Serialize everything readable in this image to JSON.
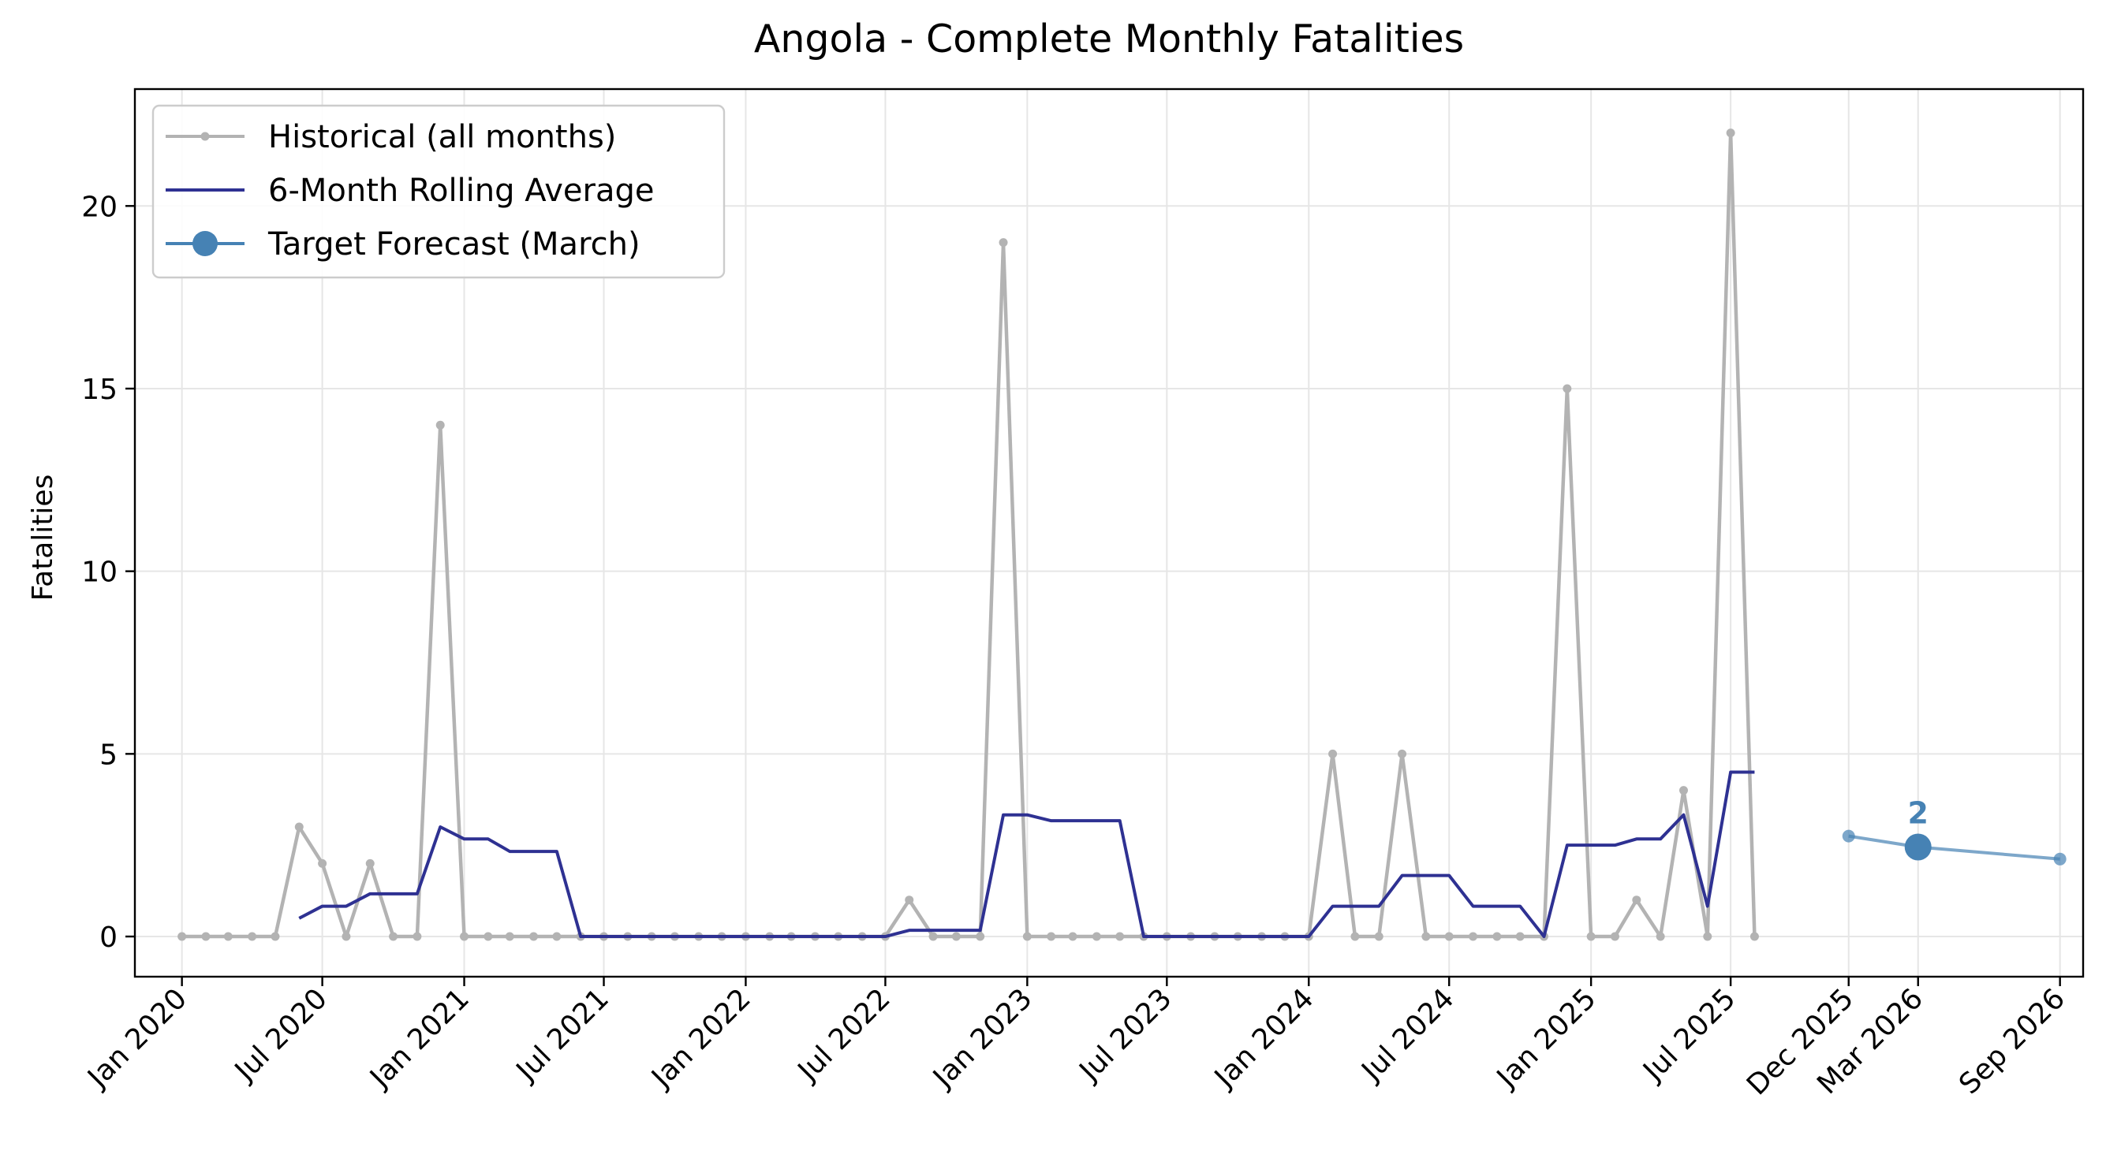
{
  "chart_data": {
    "type": "line",
    "title": "Angola - Complete Monthly Fatalities",
    "xlabel": "",
    "ylabel": "Fatalities",
    "x_range": [
      "2019-11-01",
      "2026-10-01"
    ],
    "ylim": [
      -1.1,
      23.2
    ],
    "grid": true,
    "legend_position": "top-left",
    "x_ticks": [
      {
        "date": "2020-01-01",
        "label": "Jan 2020"
      },
      {
        "date": "2020-07-01",
        "label": "Jul 2020"
      },
      {
        "date": "2021-01-01",
        "label": "Jan 2021"
      },
      {
        "date": "2021-07-01",
        "label": "Jul 2021"
      },
      {
        "date": "2022-01-01",
        "label": "Jan 2022"
      },
      {
        "date": "2022-07-01",
        "label": "Jul 2022"
      },
      {
        "date": "2023-01-01",
        "label": "Jan 2023"
      },
      {
        "date": "2023-07-01",
        "label": "Jul 2023"
      },
      {
        "date": "2024-01-01",
        "label": "Jan 2024"
      },
      {
        "date": "2024-07-01",
        "label": "Jul 2024"
      },
      {
        "date": "2025-01-01",
        "label": "Jan 2025"
      },
      {
        "date": "2025-07-01",
        "label": "Jul 2025"
      },
      {
        "date": "2025-12-01",
        "label": "Dec 2025"
      },
      {
        "date": "2026-03-01",
        "label": "Mar 2026"
      },
      {
        "date": "2026-09-01",
        "label": "Sep 2026"
      }
    ],
    "y_ticks": [
      0,
      5,
      10,
      15,
      20
    ],
    "series": [
      {
        "name": "Historical (all months)",
        "color": "#b3b3b3",
        "marker": "small-dot",
        "x_start": "2020-01-01",
        "values": [
          0,
          0,
          0,
          0,
          0,
          3,
          2,
          0,
          2,
          0,
          0,
          14,
          0,
          0,
          0,
          0,
          0,
          0,
          0,
          0,
          0,
          0,
          0,
          0,
          0,
          0,
          0,
          0,
          0,
          0,
          0,
          1,
          0,
          0,
          0,
          19,
          0,
          0,
          0,
          0,
          0,
          0,
          0,
          0,
          0,
          0,
          0,
          0,
          0,
          5,
          0,
          0,
          5,
          0,
          0,
          0,
          0,
          0,
          0,
          15,
          0,
          0,
          1,
          0,
          4,
          0,
          22,
          0
        ]
      },
      {
        "name": "6-Month Rolling Average",
        "color": "#2e3192",
        "marker": "none",
        "x_start": "2020-06-01",
        "values": [
          0.5,
          0.83,
          0.83,
          1.17,
          1.17,
          1.17,
          3.0,
          2.67,
          2.67,
          2.33,
          2.33,
          2.33,
          0,
          0,
          0,
          0,
          0,
          0,
          0,
          0,
          0,
          0,
          0,
          0,
          0,
          0,
          0.17,
          0.17,
          0.17,
          0.17,
          3.33,
          3.33,
          3.17,
          3.17,
          3.17,
          3.17,
          0,
          0,
          0,
          0,
          0,
          0,
          0,
          0,
          0.83,
          0.83,
          0.83,
          1.67,
          1.67,
          1.67,
          0.83,
          0.83,
          0.83,
          0,
          2.5,
          2.5,
          2.5,
          2.67,
          2.67,
          3.33,
          0.83,
          4.5,
          4.5
        ]
      },
      {
        "name": "Target Forecast (March)",
        "color": "#4682b4",
        "marker": "large-dot",
        "points": [
          {
            "x": "2025-12-01",
            "y": 2.75
          },
          {
            "x": "2026-03-01",
            "y": 2.45
          },
          {
            "x": "2026-09-01",
            "y": 2.12
          }
        ],
        "highlight": {
          "x": "2026-03-01",
          "y": 2.45,
          "label": "2"
        }
      }
    ]
  }
}
